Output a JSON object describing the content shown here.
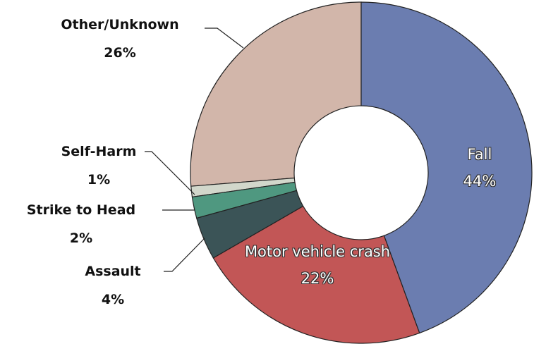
{
  "chart_data": {
    "type": "donut",
    "categories": [
      "Fall",
      "Motor vehicle crash",
      "Assault",
      "Strike to Head",
      "Self-Harm",
      "Other/Unknown"
    ],
    "values": [
      44,
      22,
      4,
      2,
      1,
      26
    ],
    "value_labels": [
      "44%",
      "22%",
      "4%",
      "2%",
      "1%",
      "26%"
    ],
    "colors": [
      "#6b7db0",
      "#c25656",
      "#3b5457",
      "#4f9880",
      "#d2d7cb",
      "#d2b6aa"
    ]
  }
}
